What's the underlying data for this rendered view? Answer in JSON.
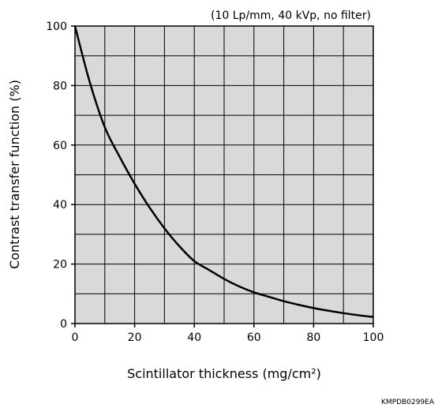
{
  "chart_data": {
    "type": "line",
    "title": "",
    "subtitle": "(10 Lp/mm, 40 kVp, no filter)",
    "xlabel": "Scintillator thickness (mg/cm²)",
    "ylabel": "Contrast transfer function (%)",
    "xlim": [
      0,
      100
    ],
    "ylim": [
      0,
      100
    ],
    "xticks": [
      "0",
      "20",
      "40",
      "60",
      "80",
      "100"
    ],
    "yticks": [
      "0",
      "20",
      "40",
      "60",
      "80",
      "100"
    ],
    "grid": true,
    "series": [
      {
        "x": [
          0,
          5,
          10,
          15,
          20,
          25,
          30,
          35,
          40,
          45,
          50,
          55,
          60,
          65,
          70,
          75,
          80,
          85,
          90,
          95,
          100
        ],
        "y": [
          100,
          81,
          66,
          56,
          47,
          39,
          32,
          26,
          21,
          18,
          15,
          12.5,
          10.5,
          9,
          7.5,
          6.3,
          5.2,
          4.3,
          3.5,
          2.8,
          2.2
        ]
      }
    ],
    "colors": {
      "plot_background": "#d9d9d9",
      "line": "#000000",
      "grid": "#000000"
    }
  },
  "figure_code": "KMPDB0299EA"
}
